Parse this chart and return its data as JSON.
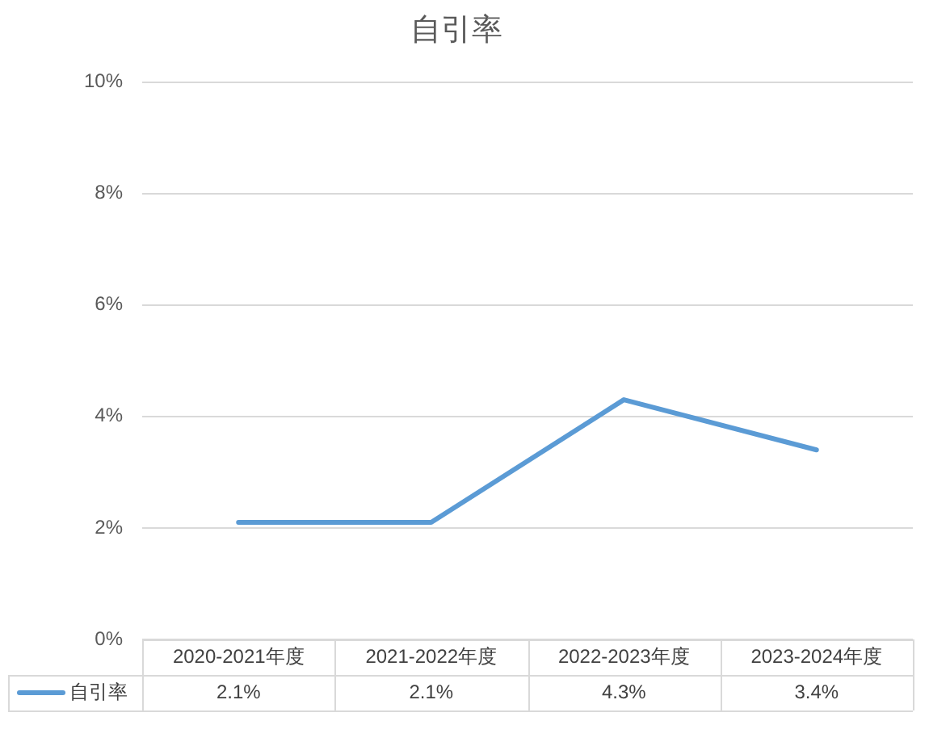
{
  "chart_data": {
    "type": "line",
    "title": "自引率",
    "categories": [
      "2020-2021年度",
      "2021-2022年度",
      "2022-2023年度",
      "2023-2024年度"
    ],
    "series": [
      {
        "name": "自引率",
        "color": "#5b9bd5",
        "values": [
          2.1,
          2.1,
          4.3,
          3.4
        ],
        "value_labels": [
          "2.1%",
          "2.1%",
          "4.3%",
          "3.4%"
        ]
      }
    ],
    "ylim": [
      0,
      10
    ],
    "yticks": [
      {
        "value": 0,
        "label": "0%"
      },
      {
        "value": 2,
        "label": "2%"
      },
      {
        "value": 4,
        "label": "4%"
      },
      {
        "value": 6,
        "label": "6%"
      },
      {
        "value": 8,
        "label": "8%"
      },
      {
        "value": 10,
        "label": "10%"
      }
    ],
    "grid": "y",
    "legend": "bottom left",
    "marker": "none",
    "line_style": "solid"
  }
}
